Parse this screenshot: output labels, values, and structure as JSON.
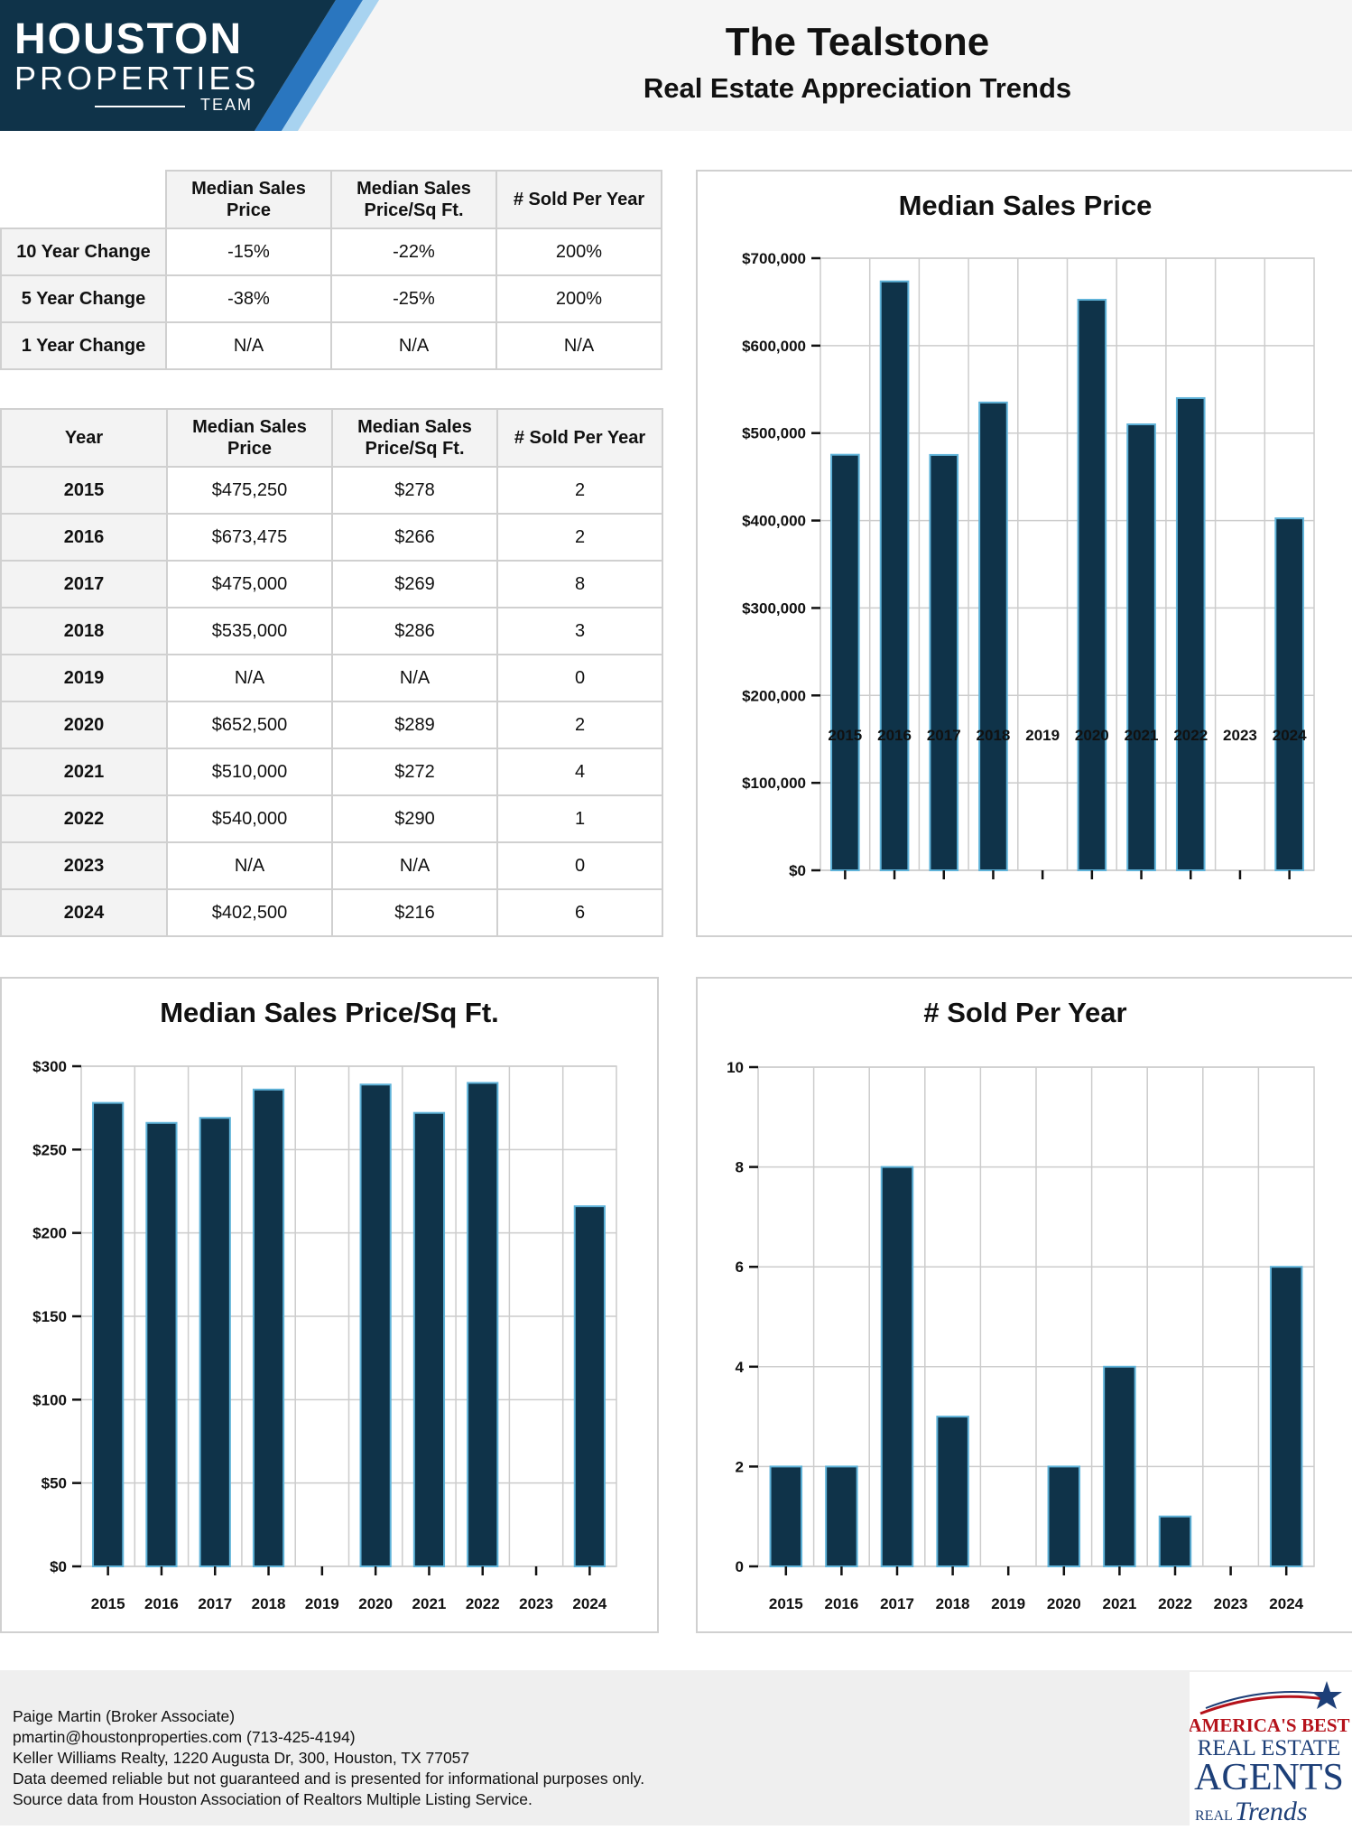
{
  "logo": {
    "line1": "HOUSTON",
    "line2": "PROPERTIES",
    "line3": "TEAM"
  },
  "header": {
    "title": "The Tealstone",
    "subtitle": "Real Estate Appreciation Trends"
  },
  "summary_table": {
    "columns": [
      "Median Sales Price",
      "Median Sales Price/Sq Ft.",
      "# Sold Per Year"
    ],
    "rows": [
      {
        "label": "10 Year Change",
        "values": [
          "-15%",
          "-22%",
          "200%"
        ]
      },
      {
        "label": "5 Year Change",
        "values": [
          "-38%",
          "-25%",
          "200%"
        ]
      },
      {
        "label": "1 Year Change",
        "values": [
          "N/A",
          "N/A",
          "N/A"
        ]
      }
    ]
  },
  "year_table": {
    "columns": [
      "Year",
      "Median Sales Price",
      "Median Sales Price/Sq Ft.",
      "# Sold Per Year"
    ],
    "rows": [
      [
        "2015",
        "$475,250",
        "$278",
        "2"
      ],
      [
        "2016",
        "$673,475",
        "$266",
        "2"
      ],
      [
        "2017",
        "$475,000",
        "$269",
        "8"
      ],
      [
        "2018",
        "$535,000",
        "$286",
        "3"
      ],
      [
        "2019",
        "N/A",
        "N/A",
        "0"
      ],
      [
        "2020",
        "$652,500",
        "$289",
        "2"
      ],
      [
        "2021",
        "$510,000",
        "$272",
        "4"
      ],
      [
        "2022",
        "$540,000",
        "$290",
        "1"
      ],
      [
        "2023",
        "N/A",
        "N/A",
        "0"
      ],
      [
        "2024",
        "$402,500",
        "$216",
        "6"
      ]
    ]
  },
  "chart_data": [
    {
      "type": "bar",
      "title": "Median Sales Price",
      "categories": [
        "2015",
        "2016",
        "2017",
        "2018",
        "2019",
        "2020",
        "2021",
        "2022",
        "2023",
        "2024"
      ],
      "values": [
        475250,
        673475,
        475000,
        535000,
        null,
        652500,
        510000,
        540000,
        null,
        402500
      ],
      "ylim": [
        0,
        700000
      ],
      "yticks": [
        0,
        100000,
        200000,
        300000,
        400000,
        500000,
        600000,
        700000
      ],
      "ytick_labels": [
        "$0",
        "$100,000",
        "$200,000",
        "$300,000",
        "$400,000",
        "$500,000",
        "$600,000",
        "$700,000"
      ],
      "grid": true,
      "bar_color": "#0f3349",
      "bar_edge_color": "#5fb3d9"
    },
    {
      "type": "bar",
      "title": "Median Sales Price/Sq Ft.",
      "categories": [
        "2015",
        "2016",
        "2017",
        "2018",
        "2019",
        "2020",
        "2021",
        "2022",
        "2023",
        "2024"
      ],
      "values": [
        278,
        266,
        269,
        286,
        null,
        289,
        272,
        290,
        null,
        216
      ],
      "ylim": [
        0,
        300
      ],
      "yticks": [
        0,
        50,
        100,
        150,
        200,
        250,
        300
      ],
      "ytick_labels": [
        "$0",
        "$50",
        "$100",
        "$150",
        "$200",
        "$250",
        "$300"
      ],
      "grid": true,
      "bar_color": "#0f3349",
      "bar_edge_color": "#5fb3d9"
    },
    {
      "type": "bar",
      "title": "# Sold Per Year",
      "categories": [
        "2015",
        "2016",
        "2017",
        "2018",
        "2019",
        "2020",
        "2021",
        "2022",
        "2023",
        "2024"
      ],
      "values": [
        2,
        2,
        8,
        3,
        0,
        2,
        4,
        1,
        0,
        6
      ],
      "ylim": [
        0,
        10
      ],
      "yticks": [
        0,
        2,
        4,
        6,
        8,
        10
      ],
      "ytick_labels": [
        "0",
        "2",
        "4",
        "6",
        "8",
        "10"
      ],
      "grid": true,
      "bar_color": "#0f3349",
      "bar_edge_color": "#5fb3d9"
    }
  ],
  "footer": {
    "lines": [
      "Paige Martin (Broker Associate)",
      "pmartin@houstonproperties.com (713-425-4194)",
      "Keller Williams Realty, 1220 Augusta Dr, 300, Houston, TX 77057",
      "Data deemed reliable but not guaranteed and is presented for informational purposes only.",
      "Source data from Houston Association of Realtors Multiple Listing Service."
    ]
  },
  "badge": {
    "line1": "AMERICA'S BEST",
    "line2": "REAL ESTATE",
    "line3": "AGENTS",
    "line4": "REAL",
    "line5": "Trends"
  },
  "colors": {
    "navy": "#0f3349",
    "accent_blue": "#5fb3d9",
    "badge_red": "#b5121b",
    "badge_blue": "#1d3f78"
  }
}
